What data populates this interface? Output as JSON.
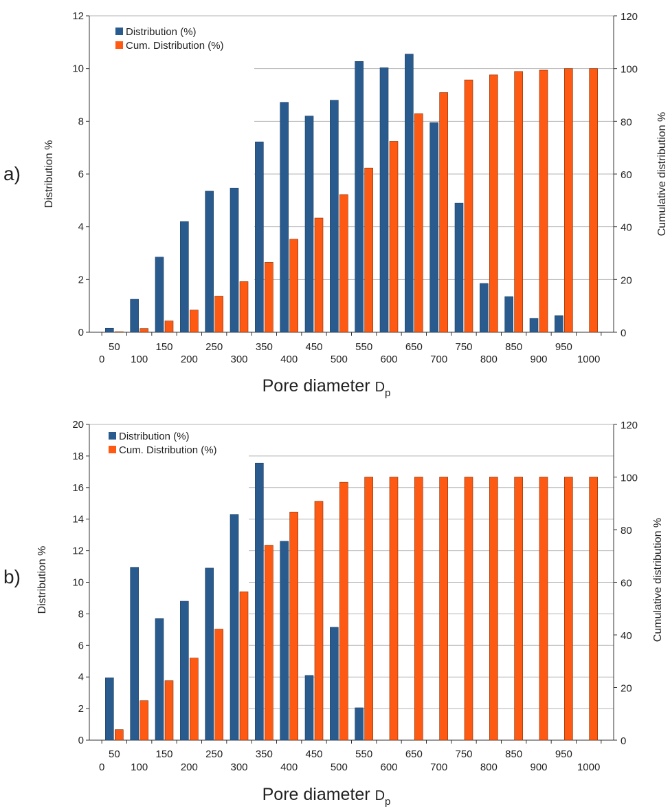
{
  "colors": {
    "distribution": "#2a5b8e",
    "cumulative": "#ff5a14",
    "grid": "#b3b3b3",
    "axis": "#333333"
  },
  "chart_data": [
    {
      "type": "bar",
      "panel_label": "a)",
      "xlabel": "Pore diameter",
      "xlabel_sub_main": "D",
      "xlabel_sub": "p",
      "ylabel_left": "Distribution %",
      "ylabel_right": "Cumulative distribution %",
      "ylim_left": [
        0,
        12
      ],
      "ylim_right": [
        0,
        120
      ],
      "left_ticks": [
        "0",
        "2",
        "4",
        "6",
        "8",
        "10",
        "12"
      ],
      "right_ticks": [
        "0",
        "20",
        "40",
        "60",
        "80",
        "100",
        "120"
      ],
      "grid": true,
      "legend_position": "top-left",
      "categories": [
        "50",
        "100",
        "150",
        "200",
        "250",
        "300",
        "350",
        "400",
        "450",
        "500",
        "550",
        "600",
        "650",
        "700",
        "750",
        "800",
        "850",
        "900",
        "950",
        "1000"
      ],
      "x_tick_zero": "0",
      "series": [
        {
          "name": "Distribution (%)",
          "axis": "left",
          "values": [
            0.15,
            1.25,
            2.85,
            4.2,
            5.35,
            5.47,
            7.22,
            8.72,
            8.2,
            8.8,
            10.27,
            10.03,
            10.55,
            7.95,
            4.9,
            1.85,
            1.35,
            0.53,
            0.63,
            0
          ]
        },
        {
          "name": "Cum. Distribution (%)",
          "axis": "right",
          "values": [
            0.2,
            1.4,
            4.3,
            8.4,
            13.7,
            19.2,
            26.5,
            35.3,
            43.3,
            52.2,
            62.3,
            72.4,
            82.9,
            90.9,
            95.7,
            97.6,
            98.9,
            99.4,
            100,
            100
          ]
        }
      ]
    },
    {
      "type": "bar",
      "panel_label": "b)",
      "xlabel": "Pore diameter",
      "xlabel_sub_main": "D",
      "xlabel_sub": "p",
      "ylabel_left": "Distribution %",
      "ylabel_right": "Cumulative distribution %",
      "ylim_left": [
        0,
        20
      ],
      "ylim_right": [
        0,
        120
      ],
      "left_ticks": [
        "0",
        "2",
        "4",
        "6",
        "8",
        "10",
        "12",
        "14",
        "16",
        "18",
        "20"
      ],
      "right_ticks": [
        "0",
        "20",
        "40",
        "60",
        "80",
        "100",
        "120"
      ],
      "grid": true,
      "legend_position": "top-left",
      "categories": [
        "50",
        "100",
        "150",
        "200",
        "250",
        "300",
        "350",
        "400",
        "450",
        "500",
        "550",
        "600",
        "650",
        "700",
        "750",
        "800",
        "850",
        "900",
        "950",
        "1000"
      ],
      "x_tick_zero": "0",
      "series": [
        {
          "name": "Distribution (%)",
          "axis": "left",
          "values": [
            3.95,
            10.95,
            7.7,
            8.8,
            10.9,
            14.3,
            17.55,
            12.6,
            4.1,
            7.15,
            2.05,
            0,
            0,
            0,
            0,
            0,
            0,
            0,
            0,
            0
          ]
        },
        {
          "name": "Cum. Distribution (%)",
          "axis": "right",
          "values": [
            4,
            15,
            22.6,
            31.2,
            42.2,
            56.4,
            74.1,
            86.7,
            90.8,
            98,
            100,
            100,
            100,
            100,
            100,
            100,
            100,
            100,
            100,
            100
          ]
        }
      ]
    }
  ]
}
